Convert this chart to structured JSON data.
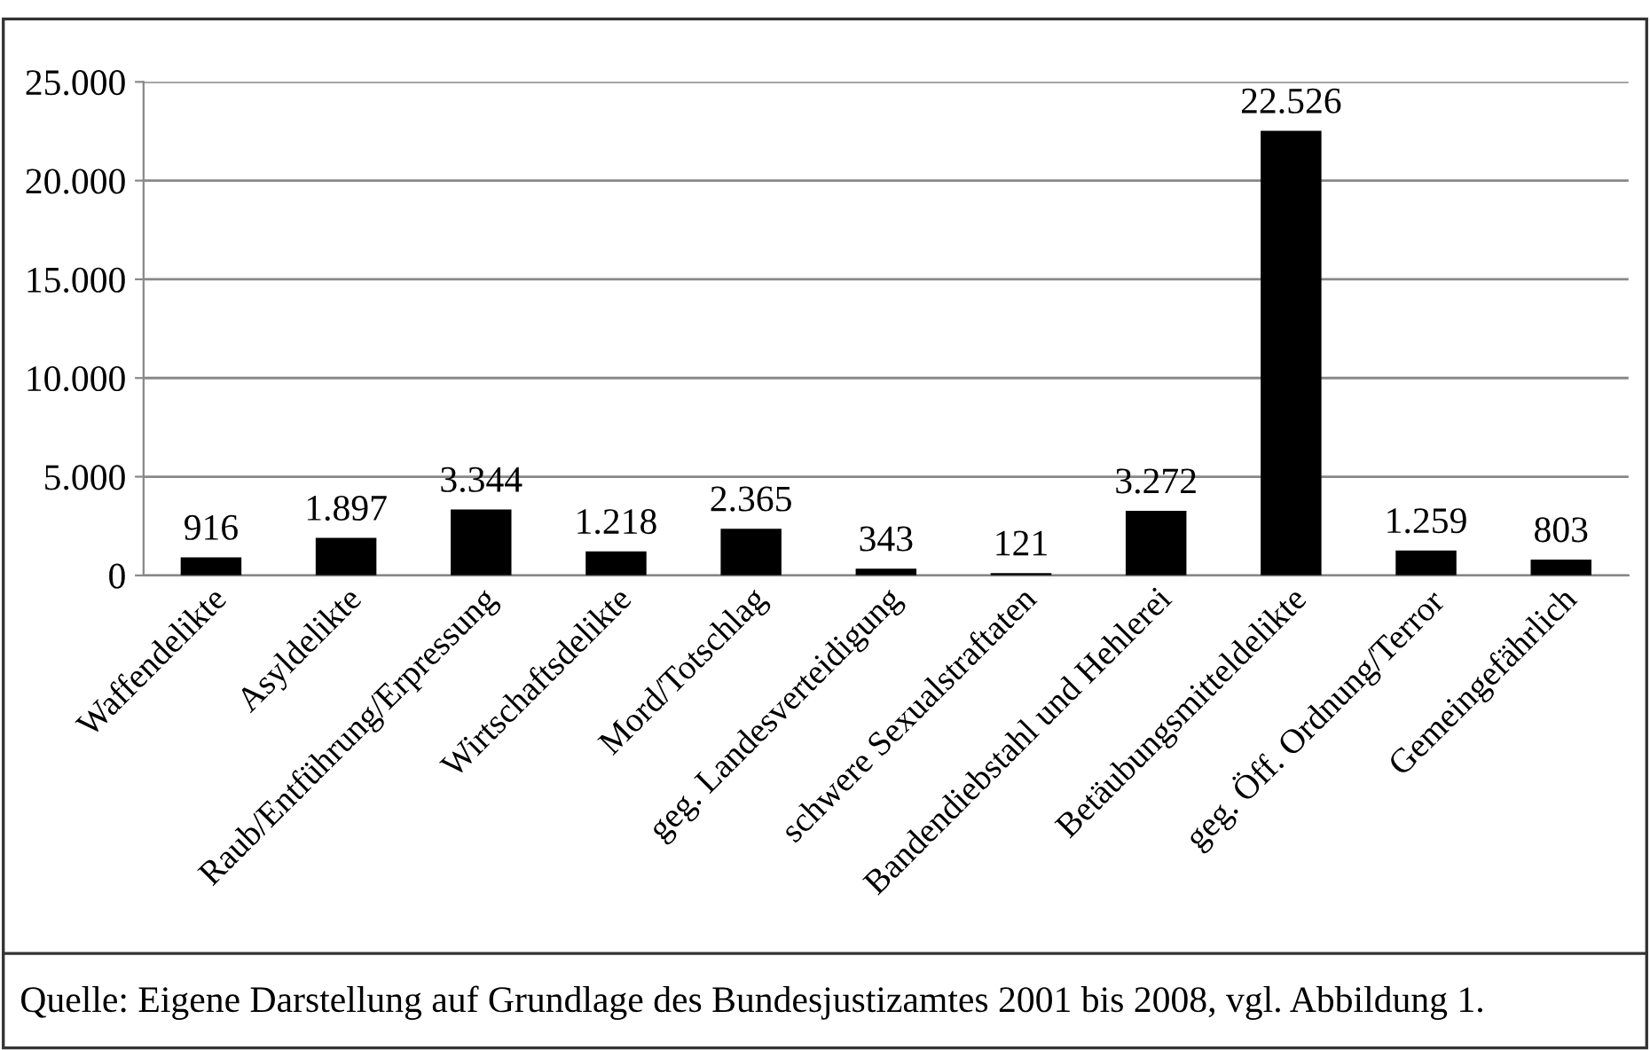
{
  "chart_data": {
    "type": "bar",
    "categories": [
      "Waffendelikte",
      "Asyldelikte",
      "Raub/Entführung/Erpressung",
      "Wirtschaftsdelikte",
      "Mord/Totschlag",
      "geg. Landesverteidigung",
      "schwere Sexualstraftaten",
      "Bandendiebstahl und Hehlerei",
      "Betäubungsmitteldelikte",
      "geg. Öff. Ordnung/Terror",
      "Gemeingefährlich"
    ],
    "values": [
      916,
      1897,
      3344,
      1218,
      2365,
      343,
      121,
      3272,
      22526,
      1259,
      803
    ],
    "value_labels": [
      "916",
      "1.897",
      "3.344",
      "1.218",
      "2.365",
      "343",
      "121",
      "3.272",
      "22.526",
      "1.259",
      "803"
    ],
    "color": "#000000",
    "ylim": [
      0,
      25000
    ],
    "yticks": [
      {
        "value": 0,
        "label": "0"
      },
      {
        "value": 5000,
        "label": "5.000"
      },
      {
        "value": 10000,
        "label": "10.000"
      },
      {
        "value": 15000,
        "label": "15.000"
      },
      {
        "value": 20000,
        "label": "20.000"
      },
      {
        "value": 25000,
        "label": "25.000"
      }
    ],
    "grid": "y",
    "annotations": [
      "Quelle: Eigene Darstellung auf Grundlage des Bundesjustizamtes 2001 bis 2008, vgl. Abbildung 1."
    ]
  }
}
